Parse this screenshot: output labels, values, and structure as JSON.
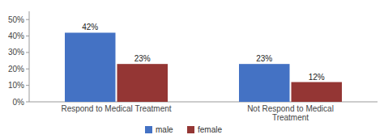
{
  "chart_data": {
    "type": "bar",
    "categories": [
      "Respond to Medical Treatment",
      "Not Respond to Medical\nTreatment"
    ],
    "series": [
      {
        "name": "male",
        "color": "#4472C4",
        "values": [
          42,
          23
        ],
        "value_labels": [
          "42%",
          "23%"
        ]
      },
      {
        "name": "female",
        "color": "#943634",
        "values": [
          23,
          12
        ],
        "value_labels": [
          "23%",
          "12%"
        ]
      }
    ],
    "ylim": [
      0,
      55
    ],
    "yticks": [
      {
        "value": 0,
        "label": "0%"
      },
      {
        "value": 10,
        "label": "10%"
      },
      {
        "value": 20,
        "label": "20%"
      },
      {
        "value": 30,
        "label": "30%"
      },
      {
        "value": 40,
        "label": "40%"
      },
      {
        "value": 50,
        "label": "50%"
      }
    ],
    "data_labels": true,
    "legend": "bottom",
    "grid": false
  }
}
